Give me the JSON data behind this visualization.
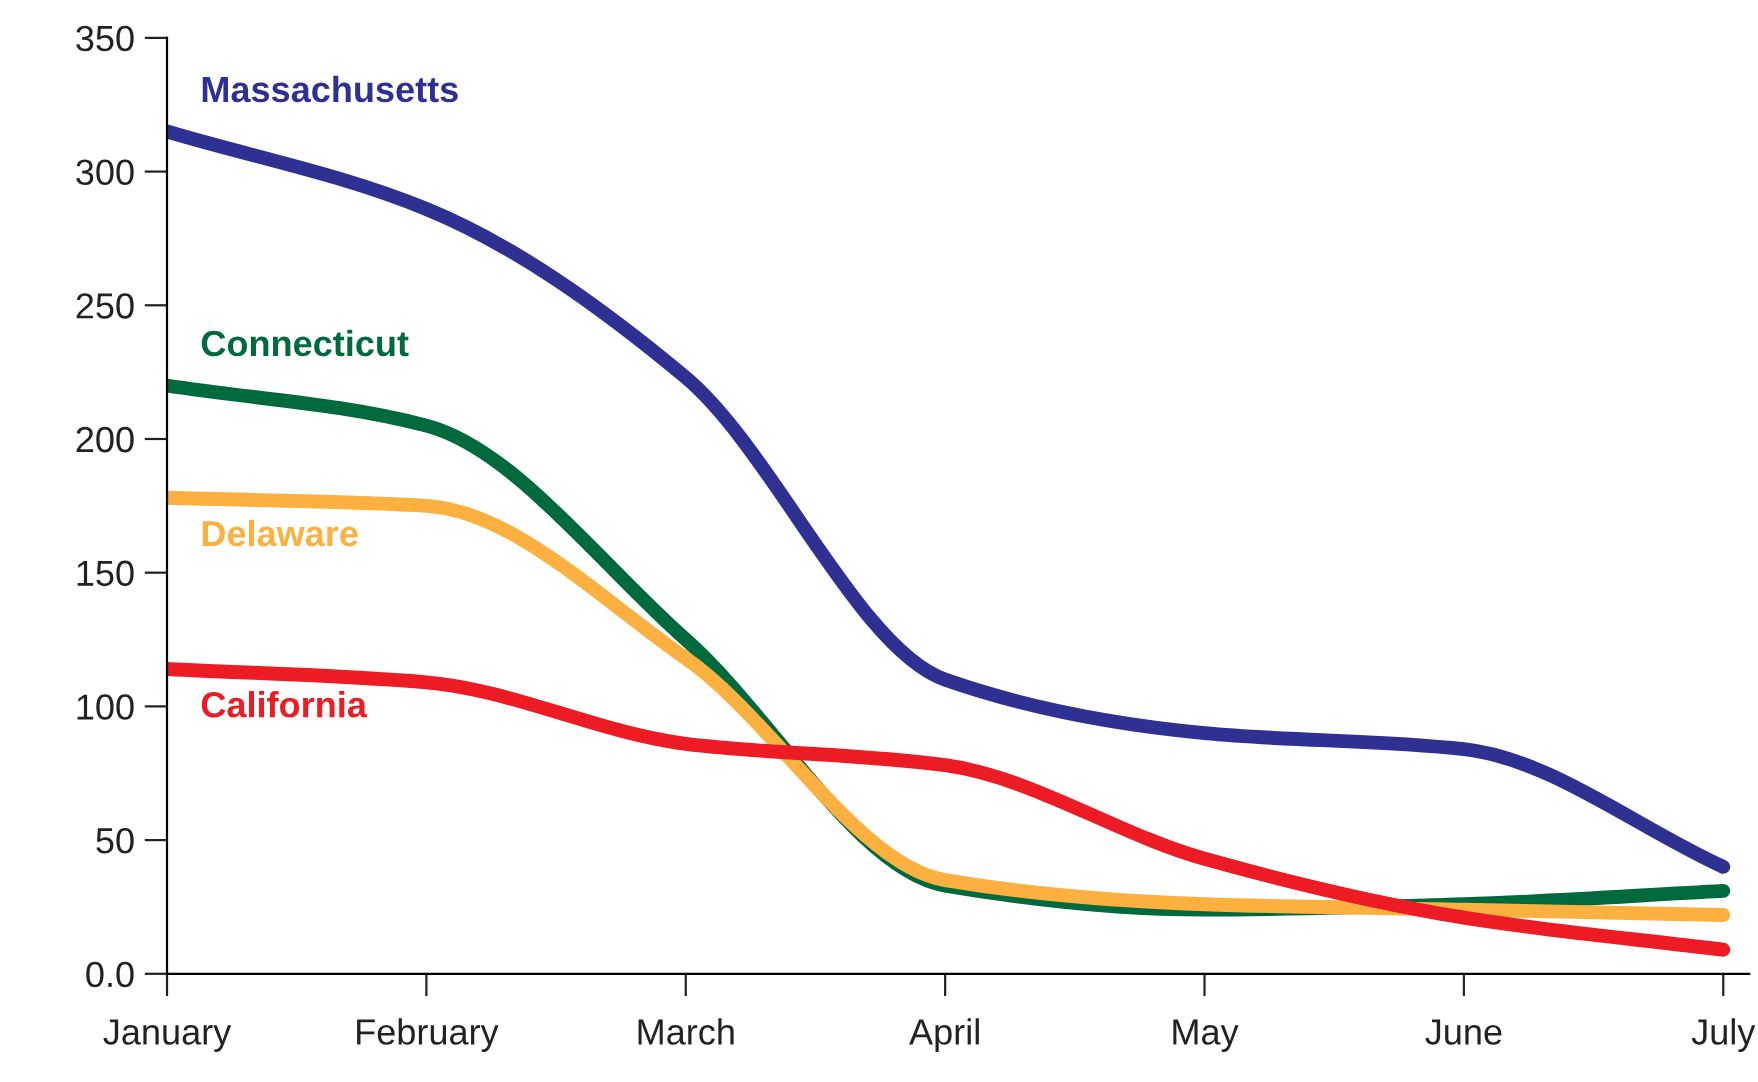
{
  "chart_data": {
    "type": "line",
    "categories": [
      "January",
      "February",
      "March",
      "April",
      "May",
      "June",
      "July"
    ],
    "series": [
      {
        "name": "Massachusetts",
        "color": "#2e3192",
        "values": [
          315,
          286,
          223,
          110,
          90,
          84,
          40
        ]
      },
      {
        "name": "Connecticut",
        "color": "#00693e",
        "values": [
          220,
          205,
          125,
          33,
          24,
          26,
          31
        ]
      },
      {
        "name": "Delaware",
        "color": "#fbb040",
        "values": [
          178,
          175,
          118,
          35,
          26,
          24,
          22
        ]
      },
      {
        "name": "California",
        "color": "#ed1c24",
        "values": [
          114,
          109,
          86,
          78,
          43,
          21,
          9
        ]
      }
    ],
    "ylim": [
      0,
      350
    ],
    "yticks": [
      {
        "value": 0,
        "label": "0.0"
      },
      50,
      100,
      150,
      200,
      250,
      300,
      350
    ],
    "grid": false,
    "legend": false,
    "marker": "none",
    "line_style": "solid"
  }
}
